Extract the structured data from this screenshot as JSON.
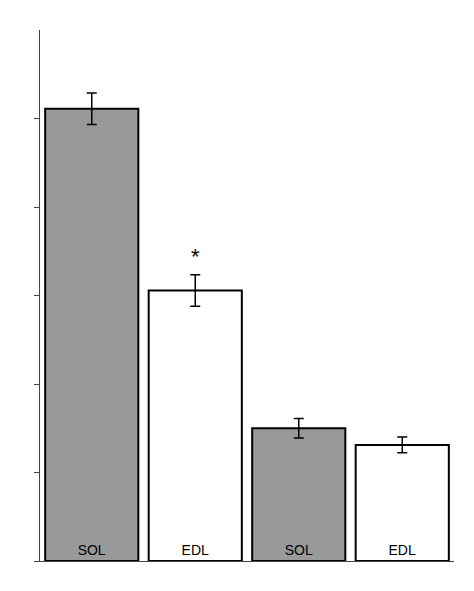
{
  "chart_data": {
    "type": "bar",
    "categories": [
      "SOL",
      "EDL",
      "SOL",
      "EDL"
    ],
    "values": [
      0.46,
      0.275,
      0.135,
      0.118
    ],
    "errors": [
      0.016,
      0.016,
      0.01,
      0.008
    ],
    "colors": [
      "#999999",
      "#ffffff",
      "#999999",
      "#ffffff"
    ],
    "ylim": [
      0,
      0.54
    ],
    "yticks": [
      0,
      0.09,
      0.18,
      0.27,
      0.36,
      0.45
    ],
    "tick_labels": false,
    "grid": false,
    "annotations": [
      {
        "text": "*",
        "x": 1
      }
    ]
  }
}
